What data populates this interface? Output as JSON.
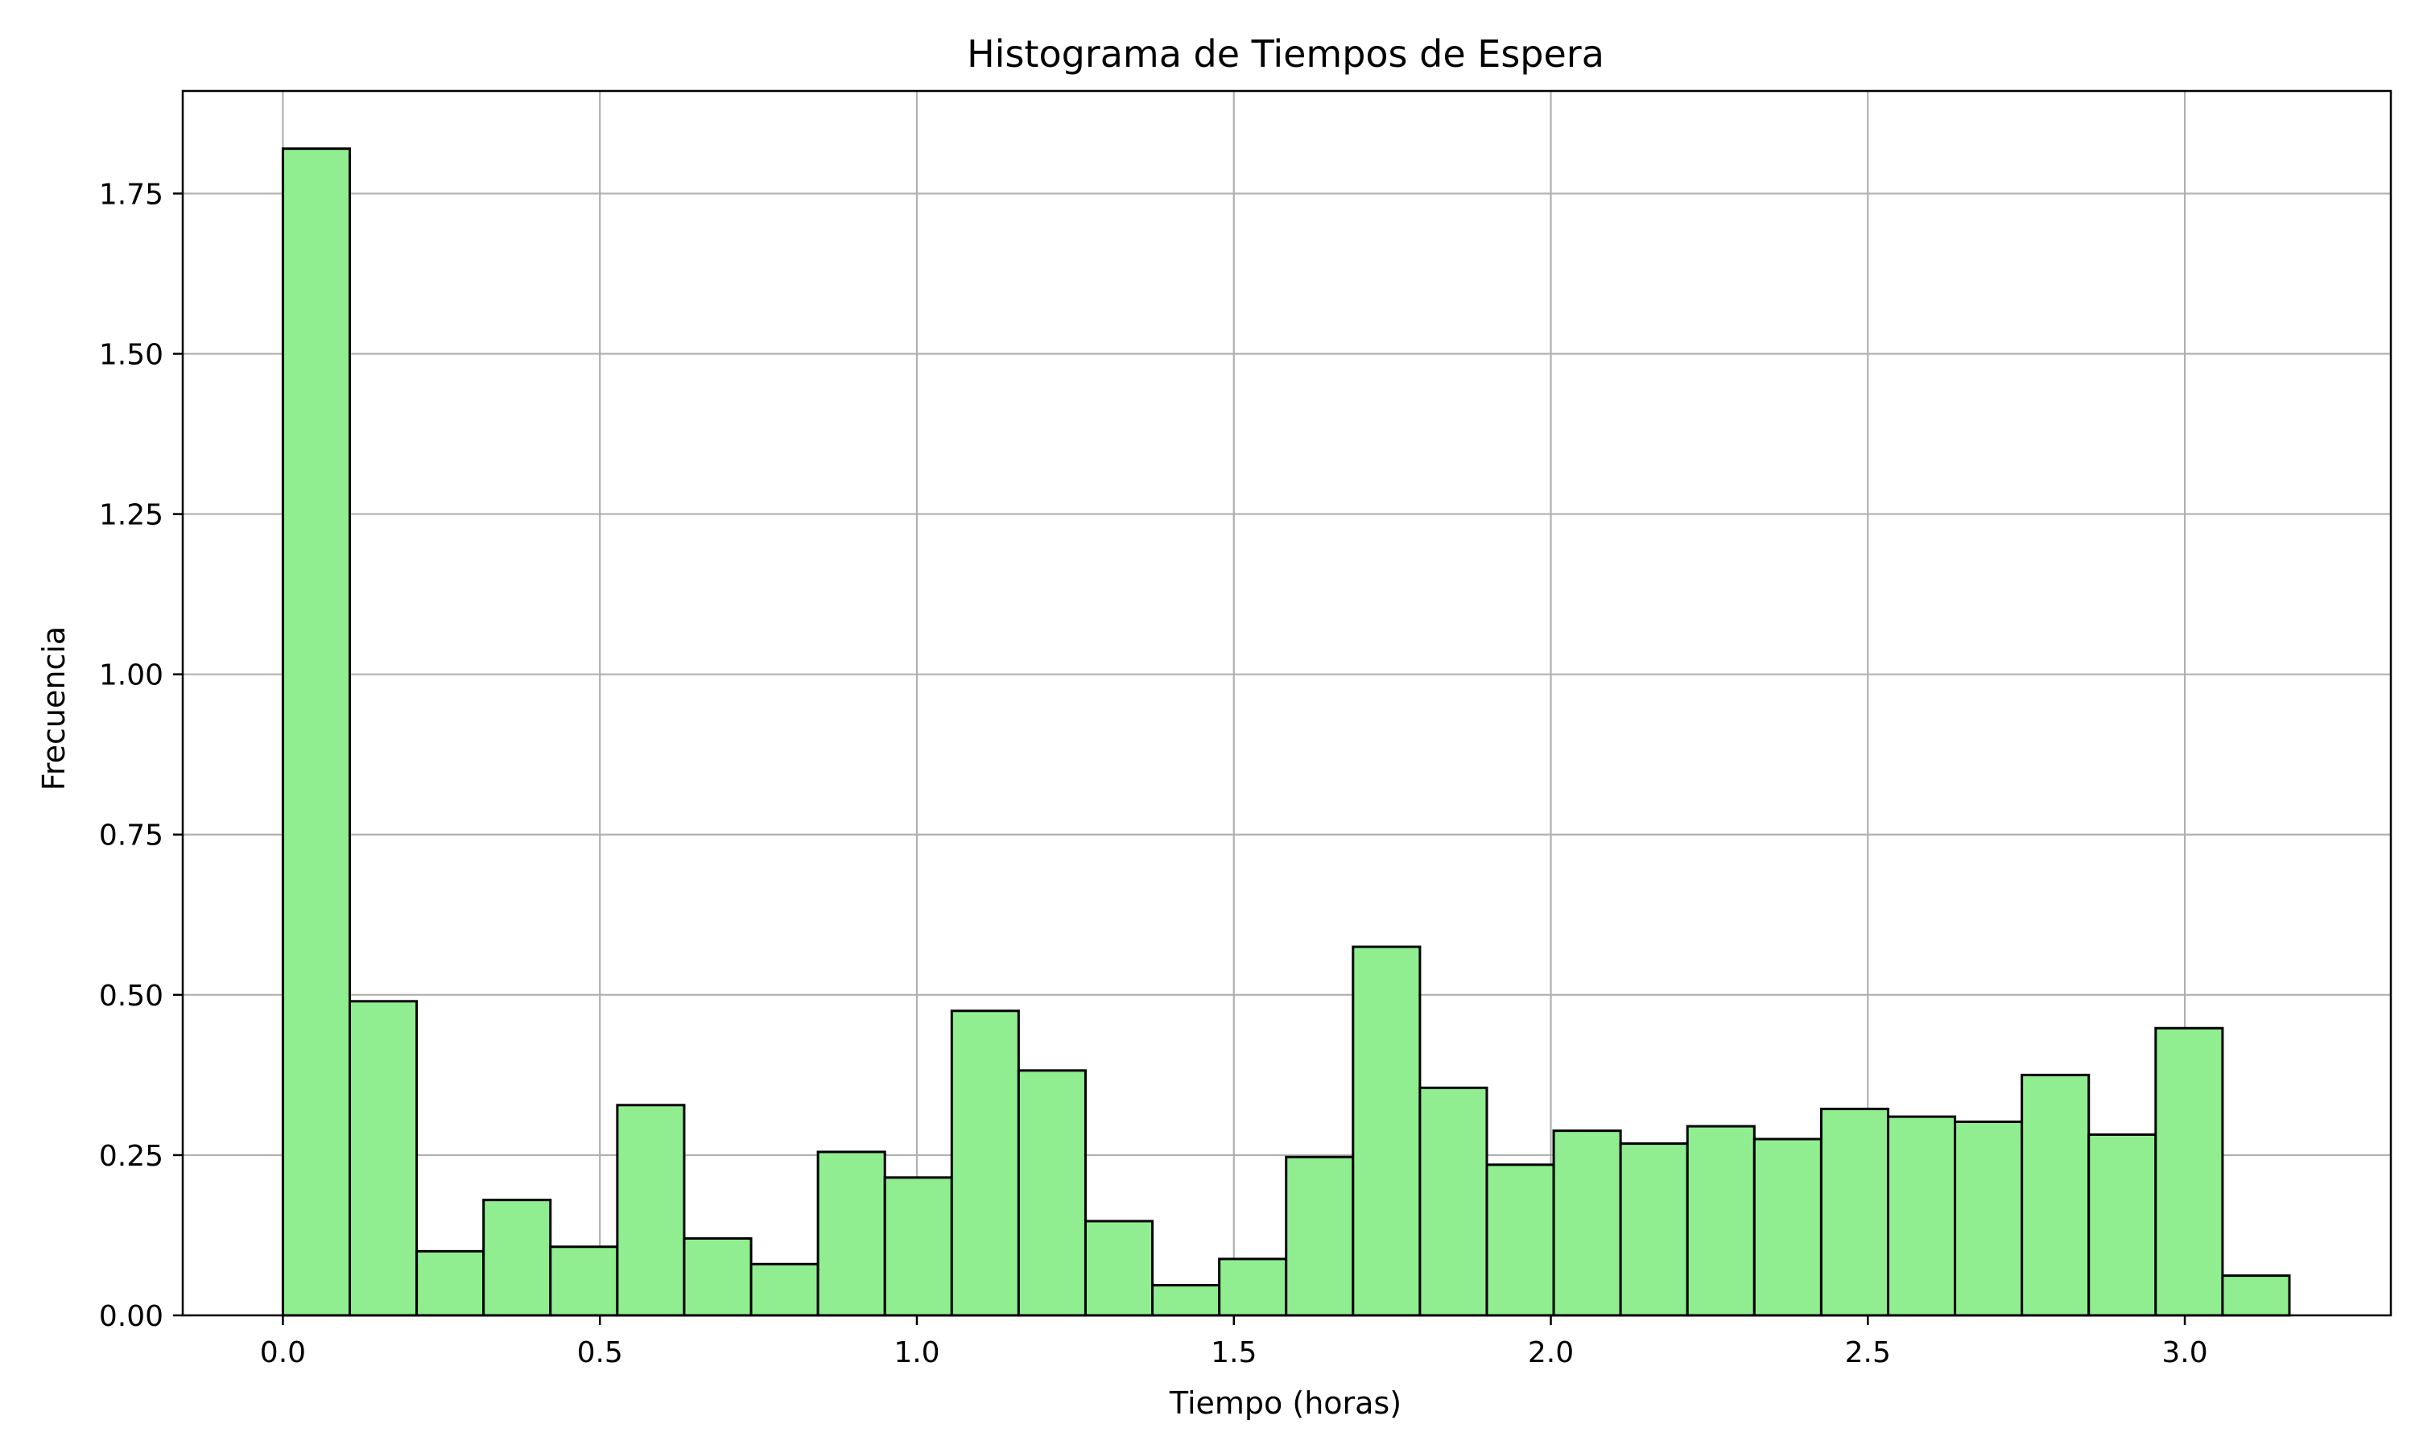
{
  "chart_data": {
    "type": "bar",
    "title": "Histograma de Tiempos de Espera",
    "xlabel": "Tiempo (horas)",
    "ylabel": "Frecuencia",
    "bin_width": 0.1055,
    "bin_edges_start": 0.0,
    "values": [
      1.82,
      0.49,
      0.1,
      0.18,
      0.107,
      0.328,
      0.12,
      0.08,
      0.255,
      0.215,
      0.475,
      0.382,
      0.147,
      0.047,
      0.088,
      0.247,
      0.575,
      0.355,
      0.235,
      0.288,
      0.268,
      0.295,
      0.275,
      0.322,
      0.31,
      0.302,
      0.375,
      0.282,
      0.448,
      0.062
    ],
    "xlim": [
      -0.158,
      3.325
    ],
    "ylim": [
      0.0,
      1.91
    ],
    "xticks": [
      0.0,
      0.5,
      1.0,
      1.5,
      2.0,
      2.5,
      3.0
    ],
    "xtick_labels": [
      "0.0",
      "0.5",
      "1.0",
      "1.5",
      "2.0",
      "2.5",
      "3.0"
    ],
    "yticks": [
      0.0,
      0.25,
      0.5,
      0.75,
      1.0,
      1.25,
      1.5,
      1.75
    ],
    "ytick_labels": [
      "0.00",
      "0.25",
      "0.50",
      "0.75",
      "1.00",
      "1.25",
      "1.50",
      "1.75"
    ],
    "grid": true,
    "colors": {
      "bar_fill": "#90ee90",
      "bar_edge": "#000000",
      "grid": "#b0b0b0",
      "axes": "#000000"
    }
  }
}
